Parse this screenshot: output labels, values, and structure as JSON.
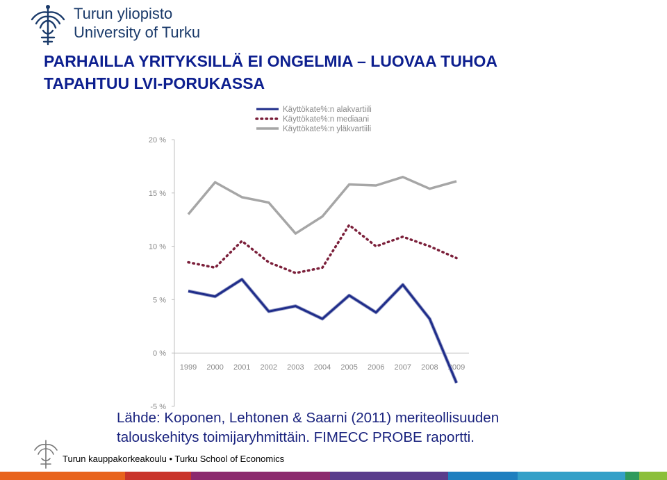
{
  "header": {
    "university_name_fi": "Turun yliopisto",
    "university_name_en": "University of Turku"
  },
  "title": {
    "line1": "PARHAILLA YRITYKSILLÄ EI ONGELMIA – LUOVAA TUHOA",
    "line2": "TAPAHTUU LVI-PORUKASSA"
  },
  "source": {
    "line1": "Lähde: Koponen, Lehtonen & Saarni (2011) meriteollisuuden",
    "line2": "talouskehitys toimijaryhmittäin. FIMECC PROBE raportti."
  },
  "footer": {
    "text": "Turun kauppakorkeakoulu • Turku School of Economics"
  },
  "colors": {
    "title": "#0d1f8f",
    "lower_quartile": "#1f2d8a",
    "median": "#7b1f3a",
    "upper_quartile": "#a6a6a6",
    "bar": [
      "#e8631c",
      "#c9342a",
      "#8c2a6e",
      "#5a3d8c",
      "#1f7fbf",
      "#34a0c8",
      "#2e9a5c",
      "#8cbf3a",
      "#e8631c"
    ]
  },
  "chart_data": {
    "type": "line",
    "x": [
      "1999",
      "2000",
      "2001",
      "2002",
      "2003",
      "2004",
      "2005",
      "2006",
      "2007",
      "2008",
      "2009"
    ],
    "series": [
      {
        "name": "Käyttökate%:n alakvartiili",
        "values": [
          5.8,
          5.3,
          6.9,
          3.9,
          4.4,
          3.2,
          5.4,
          3.8,
          6.4,
          3.2,
          -2.8
        ]
      },
      {
        "name": "Käyttökate%:n mediaani",
        "values": [
          8.5,
          8.0,
          10.5,
          8.5,
          7.5,
          8.0,
          12.0,
          10.0,
          10.9,
          10.0,
          8.9
        ]
      },
      {
        "name": "Käyttökate%:n yläkvartiili",
        "values": [
          13.0,
          16.0,
          14.6,
          14.1,
          11.2,
          12.8,
          15.8,
          15.7,
          16.5,
          15.4,
          16.1
        ]
      }
    ],
    "yticks": [
      "20 %",
      "15 %",
      "10 %",
      "5 %",
      "0 %",
      "-5 %"
    ],
    "ylim": [
      -5,
      20
    ],
    "grid": false,
    "legend_position": "top"
  }
}
